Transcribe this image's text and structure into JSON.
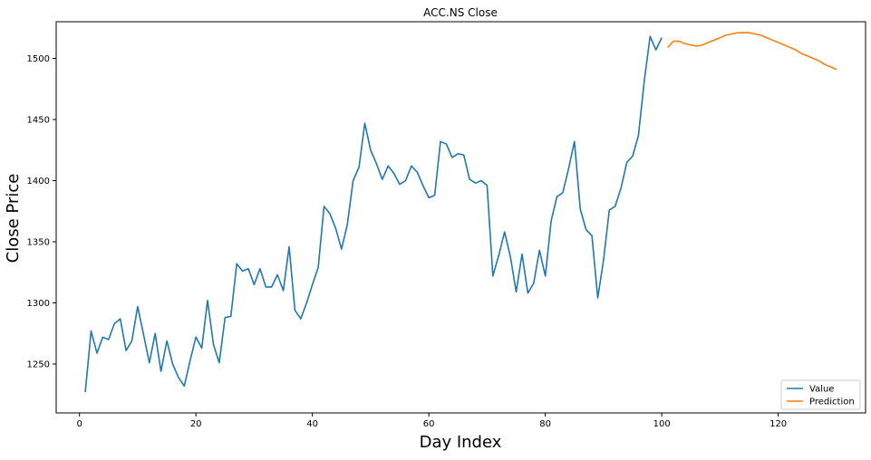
{
  "chart_data": {
    "type": "line",
    "title": "ACC.NS Close",
    "xlabel": "Day Index",
    "ylabel": "Close Price",
    "xlim": [
      -4,
      135
    ],
    "ylim": [
      1210,
      1530
    ],
    "xticks": [
      0,
      20,
      40,
      60,
      80,
      100,
      120
    ],
    "yticks": [
      1250,
      1300,
      1350,
      1400,
      1450,
      1500
    ],
    "grid": false,
    "legend_position": "bottom-right",
    "series": [
      {
        "name": "Value",
        "color": "#1f77b4",
        "x": [
          1,
          2,
          3,
          4,
          5,
          6,
          7,
          8,
          9,
          10,
          11,
          12,
          13,
          14,
          15,
          16,
          17,
          18,
          19,
          20,
          21,
          22,
          23,
          24,
          25,
          26,
          27,
          28,
          29,
          30,
          31,
          32,
          33,
          34,
          35,
          36,
          37,
          38,
          39,
          40,
          41,
          42,
          43,
          44,
          45,
          46,
          47,
          48,
          49,
          50,
          51,
          52,
          53,
          54,
          55,
          56,
          57,
          58,
          59,
          60,
          61,
          62,
          63,
          64,
          65,
          66,
          67,
          68,
          69,
          70,
          71,
          72,
          73,
          74,
          75,
          76,
          77,
          78,
          79,
          80,
          81,
          82,
          83,
          84,
          85,
          86,
          87,
          88,
          89,
          90,
          91,
          92,
          93,
          94,
          95,
          96,
          97,
          98,
          99,
          100
        ],
        "y": [
          1227,
          1277,
          1259,
          1272,
          1270,
          1283,
          1287,
          1261,
          1269,
          1297,
          1274,
          1251,
          1275,
          1244,
          1269,
          1250,
          1239,
          1232,
          1253,
          1272,
          1263,
          1302,
          1266,
          1251,
          1288,
          1289,
          1332,
          1326,
          1328,
          1315,
          1328,
          1313,
          1313,
          1323,
          1310,
          1346,
          1294,
          1287,
          1300,
          1315,
          1329,
          1379,
          1373,
          1361,
          1344,
          1364,
          1400,
          1411,
          1447,
          1425,
          1414,
          1401,
          1412,
          1406,
          1397,
          1400,
          1412,
          1407,
          1396,
          1386,
          1388,
          1432,
          1430,
          1419,
          1422,
          1421,
          1401,
          1398,
          1400,
          1396,
          1322,
          1339,
          1358,
          1338,
          1309,
          1340,
          1308,
          1316,
          1343,
          1322,
          1367,
          1387,
          1390,
          1410,
          1432,
          1377,
          1360,
          1355,
          1304,
          1335,
          1376,
          1379,
          1394,
          1415,
          1420,
          1437,
          1482,
          1518,
          1507,
          1517
        ]
      },
      {
        "name": "Prediction",
        "color": "#ff7f0e",
        "x": [
          101,
          102,
          103,
          104,
          105,
          106,
          107,
          108,
          109,
          110,
          111,
          112,
          113,
          114,
          115,
          116,
          117,
          118,
          119,
          120,
          121,
          122,
          123,
          124,
          125,
          126,
          127,
          128,
          129,
          130
        ],
        "y": [
          1509,
          1514,
          1514,
          1512,
          1511,
          1510,
          1511,
          1513,
          1515,
          1517,
          1519,
          1520,
          1521,
          1521,
          1521,
          1520,
          1519,
          1517,
          1515,
          1513,
          1511,
          1509,
          1507,
          1504,
          1502,
          1500,
          1498,
          1495,
          1493,
          1491
        ]
      }
    ]
  }
}
